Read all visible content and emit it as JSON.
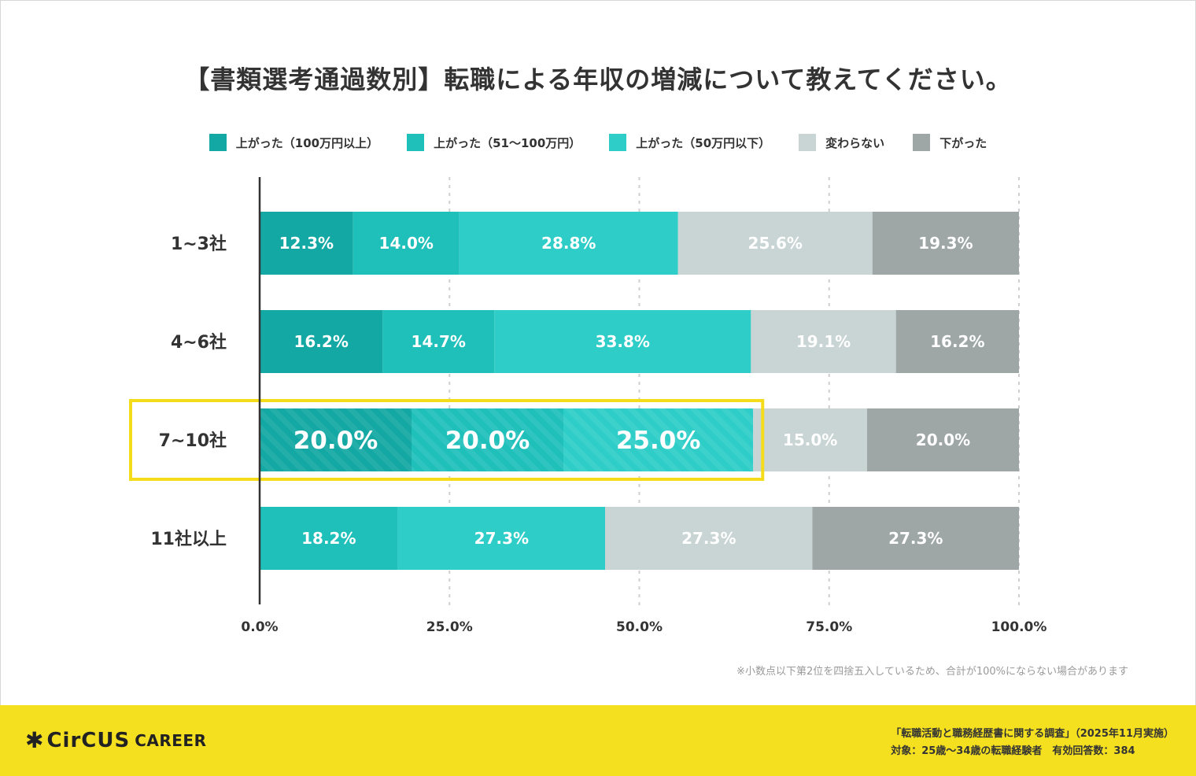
{
  "title": "【書類選考通過数別】転職による年収の増減について教えてください。",
  "legend": [
    {
      "label": "上がった（100万円以上）",
      "color": "#13a8a3"
    },
    {
      "label": "上がった（51〜100万円）",
      "color": "#1fbfba"
    },
    {
      "label": "上がった（50万円以下）",
      "color": "#2ecdc8"
    },
    {
      "label": "変わらない",
      "color": "#c9d4d4"
    },
    {
      "label": "下がった",
      "color": "#9ea6a6"
    }
  ],
  "colors": {
    "c1": "#13a8a3",
    "c2": "#1fbfba",
    "c3": "#2ecdc8",
    "c4": "#c9d4d4",
    "c5": "#9ea6a6",
    "highlight": "#f5dc1a",
    "footer": "#f5e01f"
  },
  "chart_data": {
    "type": "bar",
    "orientation": "horizontal-stacked",
    "categories": [
      "1~3社",
      "4~6社",
      "7~10社",
      "11社以上"
    ],
    "series": [
      {
        "name": "上がった（100万円以上）",
        "values": [
          12.3,
          16.2,
          20.0,
          0
        ]
      },
      {
        "name": "上がった（51〜100万円）",
        "values": [
          14.0,
          14.7,
          20.0,
          18.2
        ]
      },
      {
        "name": "上がった（50万円以下）",
        "values": [
          28.8,
          33.8,
          25.0,
          27.3
        ]
      },
      {
        "name": "変わらない",
        "values": [
          25.6,
          19.1,
          15.0,
          27.3
        ]
      },
      {
        "name": "下がった",
        "values": [
          19.3,
          16.2,
          20.0,
          27.3
        ]
      }
    ],
    "value_labels": [
      [
        "12.3%",
        "14.0%",
        "28.8%",
        "25.6%",
        "19.3%"
      ],
      [
        "16.2%",
        "14.7%",
        "33.8%",
        "19.1%",
        "16.2%"
      ],
      [
        "20.0%",
        "20.0%",
        "25.0%",
        "15.0%",
        "20.0%"
      ],
      [
        "",
        "18.2%",
        "27.3%",
        "27.3%",
        "27.3%"
      ]
    ],
    "xticks": [
      "0.0%",
      "25.0%",
      "50.0%",
      "75.0%",
      "100.0%"
    ],
    "xlim": [
      0,
      100
    ],
    "highlight_category": "7~10社"
  },
  "note": "※小数点以下第2位を四捨五入しているため、合計が100%にならない場合があります",
  "footer": {
    "logo_main": "CirCUS",
    "logo_sub": "CAREER",
    "source_line1": "「転職活動と職務経歴書に関する調査」（2025年11月実施）",
    "source_line2": "対象：25歳〜34歳の転職経験者　有効回答数：384"
  }
}
